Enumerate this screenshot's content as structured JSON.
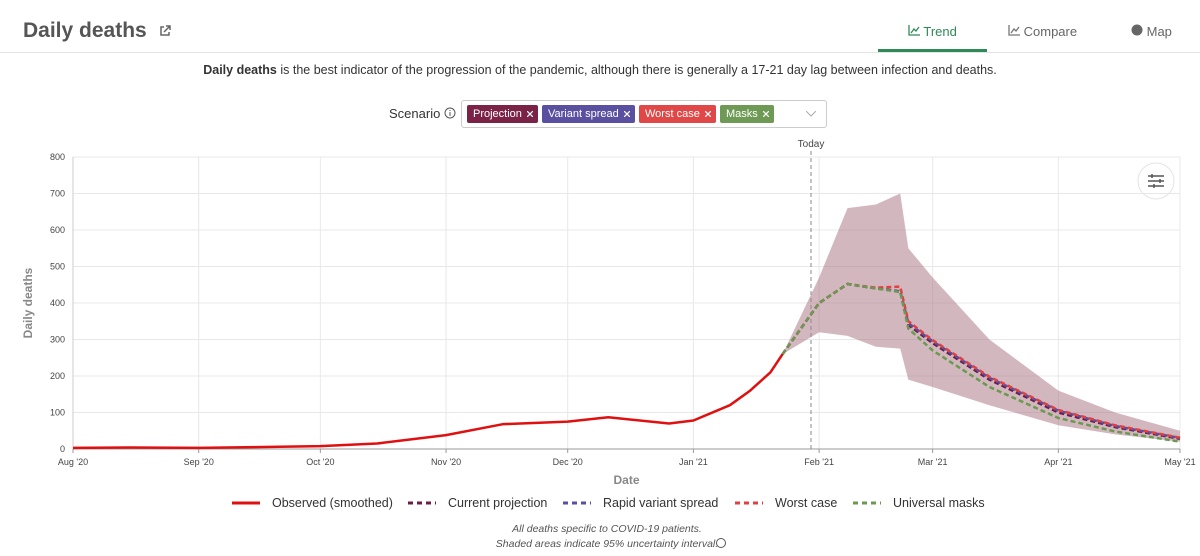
{
  "header": {
    "title": "Daily deaths"
  },
  "tabs": [
    "Trend",
    "Compare",
    "Map"
  ],
  "description": {
    "bold": "Daily deaths",
    "text": "is the best indicator of the progression of the pandemic, although there is generally a 17-21 day lag between infection and deaths."
  },
  "scenario": {
    "label": "Scenario",
    "chips": [
      {
        "label": "Projection",
        "color": "#7b2346"
      },
      {
        "label": "Variant spread",
        "color": "#5b50a0"
      },
      {
        "label": "Worst case",
        "color": "#e04848"
      },
      {
        "label": "Masks",
        "color": "#6e9a55"
      }
    ]
  },
  "chart_data": {
    "type": "line",
    "xlabel": "Date",
    "ylabel": "Daily deaths",
    "xlim": [
      "2020-08-01",
      "2021-05-01"
    ],
    "xticks": [
      {
        "value": "2020-08-01",
        "label": "Aug '20"
      },
      {
        "value": "2020-09-01",
        "label": "Sep '20"
      },
      {
        "value": "2020-10-01",
        "label": "Oct '20"
      },
      {
        "value": "2020-11-01",
        "label": "Nov '20"
      },
      {
        "value": "2020-12-01",
        "label": "Dec '20"
      },
      {
        "value": "2021-01-01",
        "label": "Jan '21"
      },
      {
        "value": "2021-02-01",
        "label": "Feb '21"
      },
      {
        "value": "2021-03-01",
        "label": "Mar '21"
      },
      {
        "value": "2021-04-01",
        "label": "Apr '21"
      },
      {
        "value": "2021-05-01",
        "label": "May '21"
      }
    ],
    "ylim": [
      0,
      800
    ],
    "yticks": [
      0,
      100,
      200,
      300,
      400,
      500,
      600,
      700,
      800
    ],
    "grid": true,
    "annotation": {
      "label": "Today",
      "x": "2021-01-30"
    },
    "band": {
      "color": "#a8707f",
      "x": [
        "2021-01-23",
        "2021-02-01",
        "2021-02-08",
        "2021-02-15",
        "2021-02-21",
        "2021-02-23",
        "2021-03-01",
        "2021-03-15",
        "2021-04-01",
        "2021-04-15",
        "2021-05-01"
      ],
      "lower": [
        260,
        320,
        310,
        280,
        275,
        190,
        170,
        120,
        65,
        40,
        20
      ],
      "upper": [
        260,
        470,
        660,
        670,
        700,
        550,
        470,
        300,
        160,
        100,
        50
      ]
    },
    "series": [
      {
        "name": "Observed (smoothed)",
        "color": "#e01010",
        "dash": false,
        "x": [
          "2020-08-01",
          "2020-08-15",
          "2020-09-01",
          "2020-09-15",
          "2020-10-01",
          "2020-10-15",
          "2020-11-01",
          "2020-11-15",
          "2020-12-01",
          "2020-12-11",
          "2020-12-26",
          "2021-01-01",
          "2021-01-10",
          "2021-01-15",
          "2021-01-20",
          "2021-01-23"
        ],
        "values": [
          3,
          4,
          3,
          5,
          8,
          15,
          38,
          68,
          75,
          87,
          70,
          78,
          120,
          160,
          210,
          260
        ]
      },
      {
        "name": "Current projection",
        "color": "#6b1d45",
        "dash": true,
        "x": [
          "2021-01-23",
          "2021-02-01",
          "2021-02-08",
          "2021-02-15",
          "2021-02-21",
          "2021-02-23",
          "2021-03-01",
          "2021-03-15",
          "2021-04-01",
          "2021-04-15",
          "2021-05-01"
        ],
        "values": [
          260,
          400,
          452,
          440,
          432,
          340,
          290,
          190,
          100,
          60,
          28
        ]
      },
      {
        "name": "Rapid variant spread",
        "color": "#5a4fa0",
        "dash": true,
        "x": [
          "2021-01-23",
          "2021-02-01",
          "2021-02-08",
          "2021-02-15",
          "2021-02-21",
          "2021-02-23",
          "2021-03-01",
          "2021-03-15",
          "2021-04-01",
          "2021-04-15",
          "2021-05-01"
        ],
        "values": [
          260,
          400,
          452,
          440,
          432,
          345,
          295,
          195,
          105,
          63,
          30
        ]
      },
      {
        "name": "Worst case",
        "color": "#e04040",
        "dash": true,
        "x": [
          "2021-01-23",
          "2021-02-01",
          "2021-02-08",
          "2021-02-15",
          "2021-02-21",
          "2021-02-23",
          "2021-03-01",
          "2021-03-15",
          "2021-04-01",
          "2021-04-15",
          "2021-05-01"
        ],
        "values": [
          260,
          400,
          452,
          442,
          445,
          350,
          298,
          198,
          107,
          65,
          31
        ]
      },
      {
        "name": "Universal masks",
        "color": "#6a9a50",
        "dash": true,
        "x": [
          "2021-01-23",
          "2021-02-01",
          "2021-02-08",
          "2021-02-15",
          "2021-02-21",
          "2021-02-23",
          "2021-03-01",
          "2021-03-15",
          "2021-04-01",
          "2021-04-15",
          "2021-05-01"
        ],
        "values": [
          260,
          400,
          452,
          440,
          430,
          330,
          270,
          170,
          85,
          48,
          20
        ]
      }
    ]
  },
  "footer": [
    "All deaths specific to COVID-19 patients.",
    "Shaded areas indicate 95% uncertainty interval."
  ]
}
